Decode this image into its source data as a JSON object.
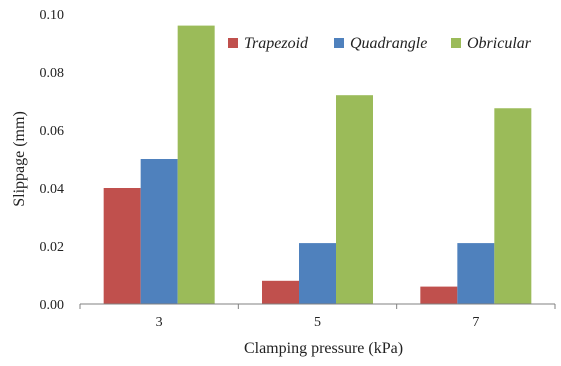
{
  "chart_data": {
    "type": "bar",
    "title": "",
    "xlabel": "Clamping pressure (kPa)",
    "ylabel": "Slippage (mm)",
    "categories": [
      "3",
      "5",
      "7"
    ],
    "ylim": [
      0,
      0.1
    ],
    "yticks": [
      "0.00",
      "0.02",
      "0.04",
      "0.06",
      "0.08",
      "0.10"
    ],
    "legend_position": "top-right",
    "grid": false,
    "series": [
      {
        "name": "Trapezoid",
        "color": "#c0504d",
        "values": [
          0.04,
          0.008,
          0.006
        ]
      },
      {
        "name": "Quadrangle",
        "color": "#4f81bd",
        "values": [
          0.05,
          0.021,
          0.021
        ]
      },
      {
        "name": "Obricular",
        "color": "#9bbb59",
        "values": [
          0.096,
          0.072,
          0.0675
        ]
      }
    ]
  }
}
